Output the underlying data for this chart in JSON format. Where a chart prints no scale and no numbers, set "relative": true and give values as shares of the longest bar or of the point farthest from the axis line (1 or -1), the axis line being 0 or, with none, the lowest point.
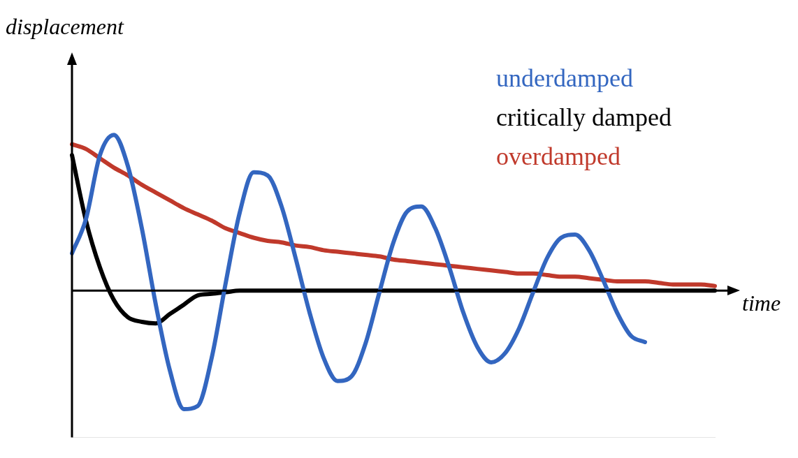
{
  "chart_data": {
    "type": "line",
    "relative": true,
    "xlabel": "time",
    "ylabel": "displacement",
    "legend": "top right",
    "marker": "none",
    "categories": [
      null,
      null,
      null,
      null,
      null,
      null,
      null,
      null,
      null,
      null,
      null,
      null,
      null,
      null,
      null,
      null,
      null,
      null,
      null,
      null,
      null,
      null,
      null,
      null,
      null,
      null,
      null,
      null,
      null,
      null,
      null,
      null,
      null,
      null,
      null,
      null,
      null,
      null,
      null,
      null,
      null,
      null,
      null,
      null,
      null,
      null,
      null
    ],
    "series": [
      {
        "name": "underdamped",
        "color": "#3366c0",
        "values": [
          0.24,
          0.46,
          0.87,
          1,
          0.8,
          0.4,
          -0.09,
          -0.51,
          -0.76,
          -0.74,
          -0.43,
          0.05,
          0.5,
          0.76,
          0.74,
          0.54,
          0.21,
          -0.14,
          -0.43,
          -0.58,
          -0.55,
          -0.34,
          -0.01,
          0.31,
          0.51,
          0.54,
          0.4,
          0.15,
          -0.14,
          -0.36,
          -0.46,
          -0.4,
          -0.24,
          -0.01,
          0.21,
          0.34,
          0.36,
          0.26,
          0.07,
          -0.14,
          -0.29,
          -0.33,
          null,
          null,
          null,
          null,
          null
        ]
      },
      {
        "name": "critically damped",
        "color": "#000000",
        "values": [
          0.87,
          0.45,
          0.15,
          -0.06,
          -0.17,
          -0.2,
          -0.21,
          -0.15,
          -0.09,
          -0.03,
          -0.02,
          -0.01,
          0,
          0,
          0,
          0,
          0,
          0,
          0,
          0,
          0,
          0,
          0,
          0,
          0,
          0,
          0,
          0,
          0,
          0,
          0,
          0,
          0,
          0,
          0,
          0,
          0,
          0,
          0,
          0,
          0,
          0,
          0,
          0,
          0,
          0,
          0
        ]
      },
      {
        "name": "overdamped",
        "color": "#c0392b",
        "values": [
          0.94,
          0.91,
          0.85,
          0.79,
          0.74,
          0.68,
          0.63,
          0.58,
          0.53,
          0.49,
          0.45,
          0.4,
          0.37,
          0.34,
          0.32,
          0.31,
          0.29,
          0.28,
          0.26,
          0.25,
          0.24,
          0.23,
          0.22,
          0.2,
          0.19,
          0.18,
          0.17,
          0.16,
          0.15,
          0.14,
          0.13,
          0.12,
          0.11,
          0.11,
          0.1,
          0.09,
          0.09,
          0.08,
          0.07,
          0.06,
          0.06,
          0.06,
          0.05,
          0.04,
          0.04,
          0.04,
          0.03
        ]
      }
    ]
  }
}
